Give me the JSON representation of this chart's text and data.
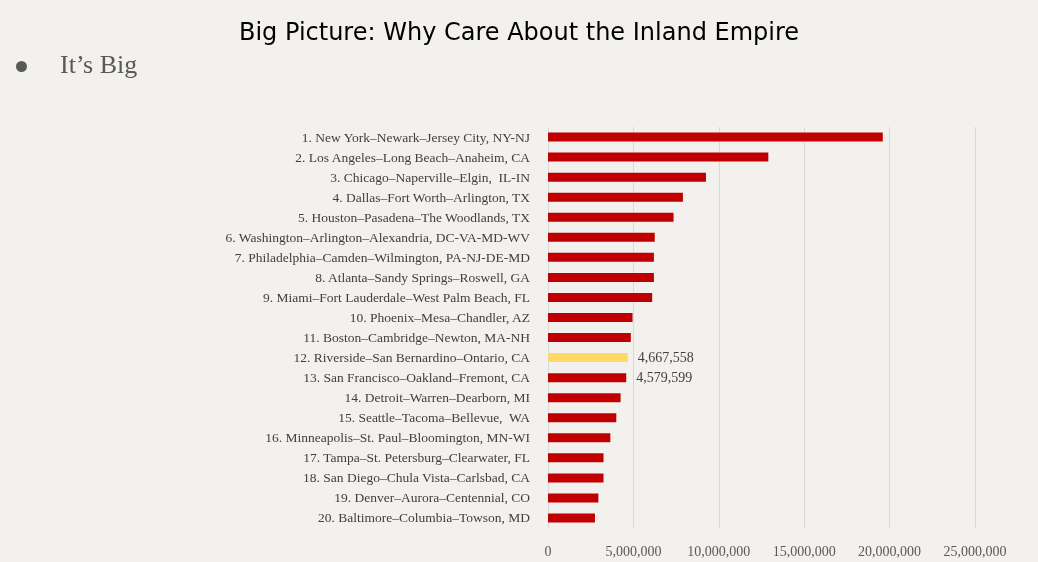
{
  "chart_data": {
    "type": "bar",
    "orientation": "horizontal",
    "title": "Big Picture: Why Care About the Inland Empire",
    "subtitle": "It’s Big",
    "categories": [
      "1. New York–Newark–Jersey City, NY-NJ",
      "2. Los Angeles–Long Beach–Anaheim, CA",
      "3. Chicago–Naperville–Elgin,  IL-IN",
      "4. Dallas–Fort Worth–Arlington, TX",
      "5. Houston–Pasadena–The Woodlands, TX",
      "6. Washington–Arlington–Alexandria, DC-VA-MD-WV",
      "7. Philadelphia–Camden–Wilmington, PA-NJ-DE-MD",
      "8. Atlanta–Sandy Springs–Roswell, GA",
      "9. Miami–Fort Lauderdale–West Palm Beach, FL",
      "10. Phoenix–Mesa–Chandler, AZ",
      "11. Boston–Cambridge–Newton, MA-NH",
      "12. Riverside–San Bernardino–Ontario, CA",
      "13. San Francisco–Oakland–Fremont, CA",
      "14. Detroit–Warren–Dearborn, MI",
      "15. Seattle–Tacoma–Bellevue,  WA",
      "16. Minneapolis–St. Paul–Bloomington, MN-WI",
      "17. Tampa–St. Petersburg–Clearwater, FL",
      "18. San Diego–Chula Vista–Carlsbad, CA",
      "19. Denver–Aurora–Centennial, CO",
      "20. Baltimore–Columbia–Towson, MD"
    ],
    "values": [
      19600000,
      12900000,
      9250000,
      7900000,
      7350000,
      6250000,
      6200000,
      6200000,
      6100000,
      4950000,
      4850000,
      4667558,
      4579599,
      4250000,
      4000000,
      3650000,
      3250000,
      3250000,
      2950000,
      2750000
    ],
    "colors": [
      "#c00000",
      "#c00000",
      "#c00000",
      "#c00000",
      "#c00000",
      "#c00000",
      "#c00000",
      "#c00000",
      "#c00000",
      "#c00000",
      "#c00000",
      "#ffd966",
      "#c00000",
      "#c00000",
      "#c00000",
      "#c00000",
      "#c00000",
      "#c00000",
      "#c00000",
      "#c00000"
    ],
    "value_labels": [
      null,
      null,
      null,
      null,
      null,
      null,
      null,
      null,
      null,
      null,
      null,
      "4,667,558",
      "4,579,599",
      null,
      null,
      null,
      null,
      null,
      null,
      null
    ],
    "xlim": [
      0,
      25000000
    ],
    "xticks": [
      0,
      {
        "value": 5000000,
        "label": "5,000,000"
      },
      {
        "value": 10000000,
        "label": "10,000,000"
      },
      {
        "value": 15000000,
        "label": "15,000,000"
      },
      {
        "value": 20000000,
        "label": "20,000,000"
      },
      {
        "value": 25000000,
        "label": "25,000,000"
      }
    ],
    "grid": "x"
  }
}
